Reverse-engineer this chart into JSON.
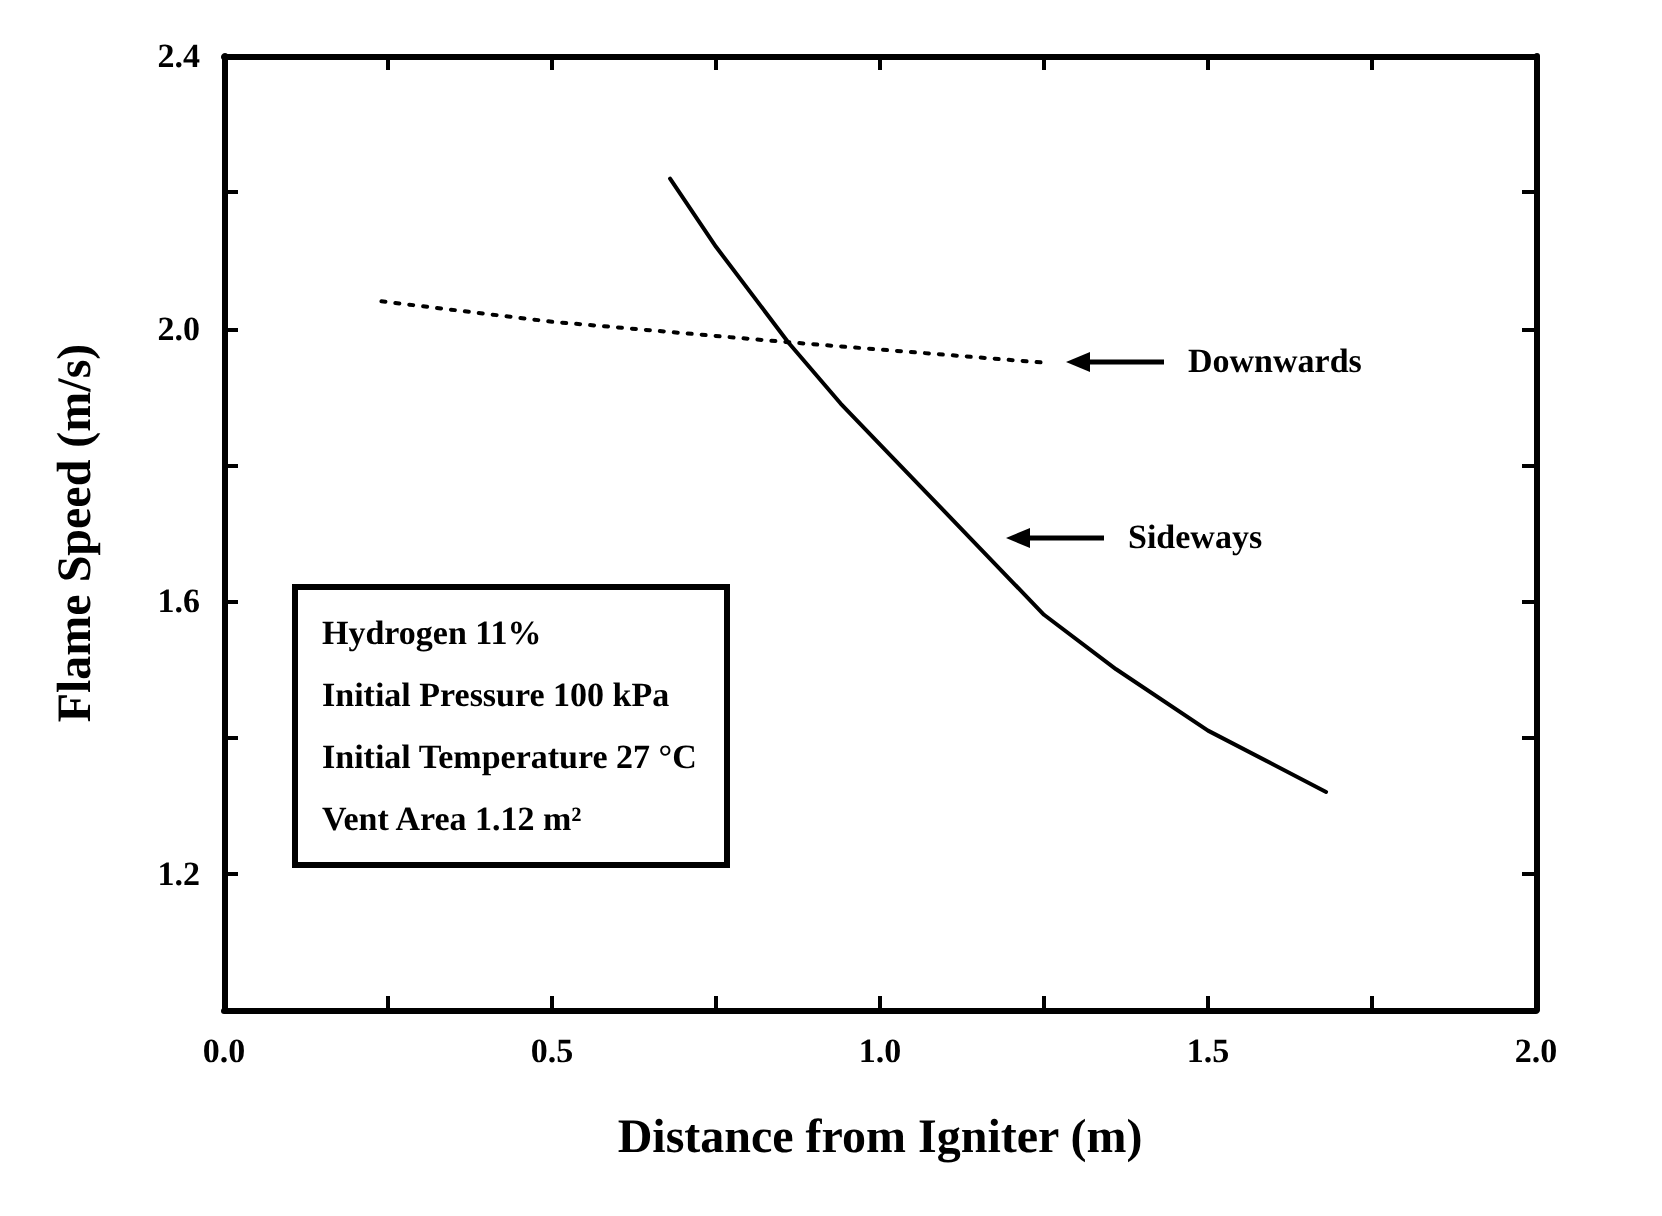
{
  "chart_data": {
    "type": "line",
    "xlabel": "Distance from Igniter (m)",
    "ylabel": "Flame Speed (m/s)",
    "xlim": [
      0,
      2.0
    ],
    "xticks": [
      {
        "value": 0,
        "label": "0.0"
      },
      {
        "value": 0.25,
        "label": null
      },
      {
        "value": 0.5,
        "label": "0.5"
      },
      {
        "value": 0.75,
        "label": null
      },
      {
        "value": 1.0,
        "label": "1.0"
      },
      {
        "value": 1.25,
        "label": null
      },
      {
        "value": 1.5,
        "label": "1.5"
      },
      {
        "value": 1.75,
        "label": null
      },
      {
        "value": 2.0,
        "label": "2.0"
      }
    ],
    "ylim": [
      1.0,
      2.4
    ],
    "yticks": [
      {
        "value": 1.0,
        "label": null
      },
      {
        "value": 1.2,
        "label": "1.2"
      },
      {
        "value": 1.4,
        "label": null
      },
      {
        "value": 1.6,
        "label": "1.6"
      },
      {
        "value": 1.8,
        "label": null
      },
      {
        "value": 2.0,
        "label": "2.0"
      },
      {
        "value": 2.2,
        "label": null
      },
      {
        "value": 2.4,
        "label": "2.4"
      }
    ],
    "grid": false,
    "marker": "none",
    "series": [
      {
        "color": "#000000",
        "line_style": "dotted",
        "x": [
          0.24,
          0.5,
          0.86,
          1.25
        ],
        "values": [
          2.04,
          2.01,
          1.98,
          1.95
        ]
      },
      {
        "color": "#000000",
        "line_style": "solid",
        "x": [
          0.68,
          0.75,
          0.86,
          0.94,
          1.02,
          1.14,
          1.25,
          1.36,
          1.5,
          1.68
        ],
        "values": [
          2.22,
          2.12,
          1.98,
          1.89,
          1.81,
          1.69,
          1.58,
          1.5,
          1.41,
          1.32
        ]
      }
    ],
    "annotations": [
      "Downwards",
      "Sideways",
      "Hydrogen 11%",
      "Initial Pressure 100 kPa",
      "Initial Temperature 27 °C",
      "Vent Area 1.12 m²"
    ]
  }
}
